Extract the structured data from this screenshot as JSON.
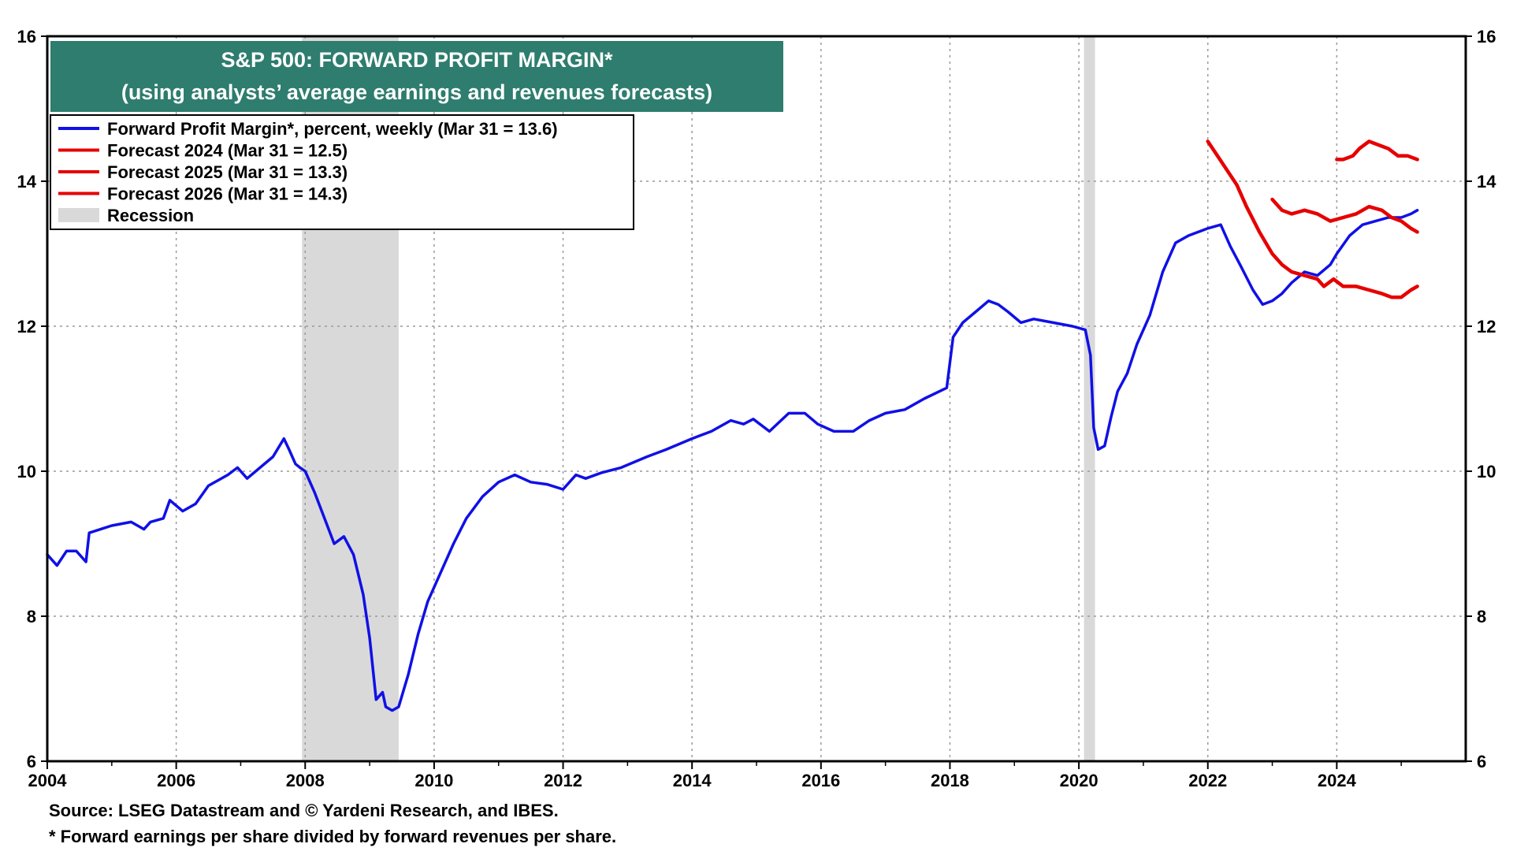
{
  "title_box": {
    "line1": "S&P 500: FORWARD PROFIT MARGIN*",
    "line2": "(using analysts’ average earnings and revenues forecasts)",
    "background": "#2e7d6e"
  },
  "legend": [
    {
      "label": "Forward Profit Margin*, percent, weekly (Mar 31 = 13.6)",
      "color": "#1010e6",
      "kind": "line"
    },
    {
      "label": "Forecast 2024 (Mar 31 = 12.5)",
      "color": "#e60000",
      "kind": "line"
    },
    {
      "label": "Forecast 2025 (Mar 31 = 13.3)",
      "color": "#e60000",
      "kind": "line"
    },
    {
      "label": "Forecast 2026 (Mar 31 = 14.3)",
      "color": "#e60000",
      "kind": "line"
    },
    {
      "label": "Recession",
      "color": "#d9d9d9",
      "kind": "band"
    }
  ],
  "footnotes": {
    "source": "Source: LSEG Datastream and © Yardeni Research, and IBES.",
    "note": "* Forward earnings per share divided by forward revenues per share."
  },
  "chart_data": {
    "type": "line",
    "title": "S&P 500: FORWARD PROFIT MARGIN*",
    "subtitle": "(using analysts’ average earnings and revenues forecasts)",
    "xlim": [
      2004,
      2026
    ],
    "ylim": [
      6,
      16
    ],
    "x_ticks": [
      2004,
      2006,
      2008,
      2010,
      2012,
      2014,
      2016,
      2018,
      2020,
      2022,
      2024
    ],
    "y_ticks": [
      6,
      8,
      10,
      12,
      14,
      16
    ],
    "y_axis_both_sides": true,
    "grid": "dotted",
    "legend_position": "top-left",
    "recessions": [
      [
        2007.95,
        2009.45
      ],
      [
        2020.08,
        2020.25
      ]
    ],
    "series": [
      {
        "name": "Forward Profit Margin*, percent, weekly (Mar 31 = 13.6)",
        "color": "#1010e6",
        "x": [
          2004.0,
          2004.15,
          2004.3,
          2004.45,
          2004.6,
          2004.65,
          2005.0,
          2005.3,
          2005.5,
          2005.6,
          2005.8,
          2005.9,
          2006.1,
          2006.3,
          2006.5,
          2006.8,
          2006.95,
          2007.1,
          2007.3,
          2007.5,
          2007.67,
          2007.75,
          2007.85,
          2007.92,
          2008.0,
          2008.15,
          2008.3,
          2008.45,
          2008.6,
          2008.75,
          2008.9,
          2009.0,
          2009.1,
          2009.2,
          2009.25,
          2009.35,
          2009.45,
          2009.6,
          2009.75,
          2009.9,
          2010.1,
          2010.3,
          2010.5,
          2010.75,
          2011.0,
          2011.25,
          2011.5,
          2011.75,
          2012.0,
          2012.2,
          2012.35,
          2012.6,
          2012.9,
          2013.3,
          2013.6,
          2014.0,
          2014.3,
          2014.6,
          2014.8,
          2014.95,
          2015.2,
          2015.5,
          2015.75,
          2015.95,
          2016.2,
          2016.5,
          2016.75,
          2017.0,
          2017.3,
          2017.6,
          2017.95,
          2018.05,
          2018.2,
          2018.4,
          2018.6,
          2018.75,
          2018.9,
          2019.1,
          2019.3,
          2019.6,
          2019.9,
          2020.1,
          2020.18,
          2020.23,
          2020.3,
          2020.4,
          2020.5,
          2020.6,
          2020.75,
          2020.9,
          2021.1,
          2021.3,
          2021.5,
          2021.7,
          2021.85,
          2022.0,
          2022.2,
          2022.35,
          2022.5,
          2022.7,
          2022.85,
          2023.0,
          2023.15,
          2023.3,
          2023.5,
          2023.7,
          2023.9,
          2024.0,
          2024.2,
          2024.4,
          2024.6,
          2024.8,
          2025.0,
          2025.15,
          2025.25
        ],
        "y": [
          8.85,
          8.7,
          8.9,
          8.9,
          8.75,
          9.15,
          9.25,
          9.3,
          9.2,
          9.3,
          9.35,
          9.6,
          9.45,
          9.55,
          9.8,
          9.95,
          10.05,
          9.9,
          10.05,
          10.2,
          10.45,
          10.3,
          10.1,
          10.05,
          10.0,
          9.7,
          9.35,
          9.0,
          9.1,
          8.85,
          8.3,
          7.7,
          6.85,
          6.95,
          6.75,
          6.7,
          6.75,
          7.2,
          7.75,
          8.2,
          8.6,
          9.0,
          9.35,
          9.65,
          9.85,
          9.95,
          9.85,
          9.82,
          9.75,
          9.95,
          9.9,
          9.98,
          10.05,
          10.2,
          10.3,
          10.45,
          10.55,
          10.7,
          10.65,
          10.72,
          10.55,
          10.8,
          10.8,
          10.65,
          10.55,
          10.55,
          10.7,
          10.8,
          10.85,
          11.0,
          11.15,
          11.85,
          12.05,
          12.2,
          12.35,
          12.3,
          12.2,
          12.05,
          12.1,
          12.05,
          12.0,
          11.95,
          11.6,
          10.6,
          10.3,
          10.35,
          10.75,
          11.1,
          11.35,
          11.75,
          12.15,
          12.75,
          13.15,
          13.25,
          13.3,
          13.35,
          13.4,
          13.1,
          12.85,
          12.5,
          12.3,
          12.35,
          12.45,
          12.6,
          12.75,
          12.7,
          12.85,
          13.0,
          13.25,
          13.4,
          13.45,
          13.5,
          13.5,
          13.55,
          13.6
        ]
      },
      {
        "name": "Forecast 2024 (Mar 31 = 12.5)",
        "color": "#e60000",
        "x": [
          2022.0,
          2022.15,
          2022.3,
          2022.45,
          2022.6,
          2022.8,
          2023.0,
          2023.15,
          2023.3,
          2023.5,
          2023.7,
          2023.8,
          2023.95,
          2024.1,
          2024.3,
          2024.5,
          2024.7,
          2024.85,
          2025.0,
          2025.15,
          2025.25
        ],
        "y": [
          14.55,
          14.35,
          14.15,
          13.95,
          13.65,
          13.3,
          13.0,
          12.85,
          12.75,
          12.7,
          12.65,
          12.55,
          12.65,
          12.55,
          12.55,
          12.5,
          12.45,
          12.4,
          12.4,
          12.5,
          12.55
        ]
      },
      {
        "name": "Forecast 2025 (Mar 31 = 13.3)",
        "color": "#e60000",
        "x": [
          2023.0,
          2023.15,
          2023.3,
          2023.5,
          2023.7,
          2023.9,
          2024.1,
          2024.3,
          2024.5,
          2024.7,
          2024.85,
          2025.0,
          2025.15,
          2025.25
        ],
        "y": [
          13.75,
          13.6,
          13.55,
          13.6,
          13.55,
          13.45,
          13.5,
          13.55,
          13.65,
          13.6,
          13.5,
          13.45,
          13.35,
          13.3
        ]
      },
      {
        "name": "Forecast 2026 (Mar 31 = 14.3)",
        "color": "#e60000",
        "x": [
          2024.0,
          2024.1,
          2024.25,
          2024.35,
          2024.5,
          2024.65,
          2024.8,
          2024.95,
          2025.1,
          2025.25
        ],
        "y": [
          14.3,
          14.3,
          14.35,
          14.45,
          14.55,
          14.5,
          14.45,
          14.35,
          14.35,
          14.3
        ]
      }
    ]
  }
}
